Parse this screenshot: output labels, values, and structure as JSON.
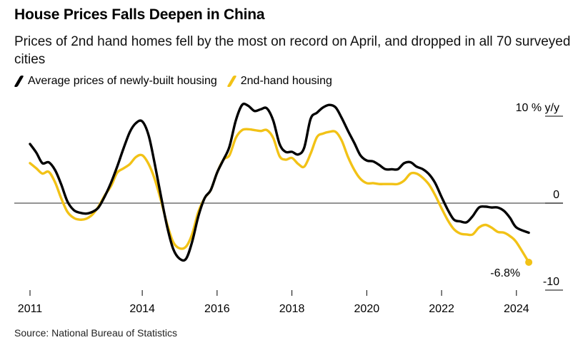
{
  "chart_data": {
    "type": "line",
    "title": "House Prices Falls Deepen in China",
    "subtitle": "Prices of 2nd hand homes fell by the most on record on April, and dropped in all 70 surveyed cities",
    "xlabel": "",
    "ylabel": "10 % y/y",
    "ylim": [
      -10,
      10
    ],
    "xlim": [
      2011.0,
      2024.5
    ],
    "x_ticks": [
      2011,
      2014,
      2016,
      2018,
      2020,
      2022,
      2024
    ],
    "x_tick_labels": [
      "2011",
      "2014",
      "2016",
      "2018",
      "2020",
      "2022",
      "2024"
    ],
    "y_ticks": [
      10,
      0,
      -10
    ],
    "y_tick_labels": [
      "10 % y/y",
      "0",
      "-10"
    ],
    "legend_position": "top-left",
    "source": "Source: National Bureau of Statistics",
    "annotation": {
      "text": "-6.8%",
      "x": 2024.33,
      "y": -6.8
    },
    "series": [
      {
        "name": "Average prices of newly-built housing",
        "color": "#000000",
        "points": [
          [
            2011.0,
            6.8
          ],
          [
            2011.17,
            5.8
          ],
          [
            2011.33,
            4.6
          ],
          [
            2011.5,
            4.7
          ],
          [
            2011.67,
            3.8
          ],
          [
            2011.83,
            2.2
          ],
          [
            2012.0,
            0.2
          ],
          [
            2012.17,
            -0.8
          ],
          [
            2012.33,
            -1.1
          ],
          [
            2012.5,
            -1.2
          ],
          [
            2012.67,
            -1.0
          ],
          [
            2012.83,
            -0.5
          ],
          [
            2013.0,
            0.8
          ],
          [
            2013.17,
            2.4
          ],
          [
            2013.33,
            4.2
          ],
          [
            2013.5,
            6.3
          ],
          [
            2013.67,
            8.2
          ],
          [
            2013.83,
            9.2
          ],
          [
            2014.0,
            9.4
          ],
          [
            2014.17,
            7.8
          ],
          [
            2014.33,
            4.6
          ],
          [
            2014.5,
            0.8
          ],
          [
            2014.67,
            -2.8
          ],
          [
            2014.83,
            -5.3
          ],
          [
            2015.0,
            -6.4
          ],
          [
            2015.17,
            -6.4
          ],
          [
            2015.33,
            -4.5
          ],
          [
            2015.5,
            -1.5
          ],
          [
            2015.67,
            0.6
          ],
          [
            2015.83,
            1.5
          ],
          [
            2016.0,
            3.5
          ],
          [
            2016.17,
            5.0
          ],
          [
            2016.33,
            6.5
          ],
          [
            2016.5,
            9.5
          ],
          [
            2016.67,
            11.3
          ],
          [
            2016.83,
            11.2
          ],
          [
            2017.0,
            10.6
          ],
          [
            2017.17,
            10.8
          ],
          [
            2017.33,
            10.9
          ],
          [
            2017.5,
            9.5
          ],
          [
            2017.67,
            6.8
          ],
          [
            2017.83,
            5.9
          ],
          [
            2018.0,
            5.9
          ],
          [
            2018.17,
            5.6
          ],
          [
            2018.33,
            6.4
          ],
          [
            2018.5,
            9.7
          ],
          [
            2018.67,
            10.4
          ],
          [
            2018.83,
            11.0
          ],
          [
            2019.0,
            11.3
          ],
          [
            2019.17,
            11.0
          ],
          [
            2019.33,
            9.8
          ],
          [
            2019.5,
            8.3
          ],
          [
            2019.67,
            6.9
          ],
          [
            2019.83,
            5.5
          ],
          [
            2020.0,
            4.9
          ],
          [
            2020.17,
            4.8
          ],
          [
            2020.33,
            4.4
          ],
          [
            2020.5,
            3.9
          ],
          [
            2020.67,
            3.9
          ],
          [
            2020.83,
            3.9
          ],
          [
            2021.0,
            4.6
          ],
          [
            2021.17,
            4.7
          ],
          [
            2021.33,
            4.2
          ],
          [
            2021.5,
            3.9
          ],
          [
            2021.67,
            3.3
          ],
          [
            2021.83,
            2.3
          ],
          [
            2022.0,
            0.7
          ],
          [
            2022.17,
            -0.8
          ],
          [
            2022.33,
            -1.9
          ],
          [
            2022.5,
            -2.1
          ],
          [
            2022.67,
            -2.2
          ],
          [
            2022.83,
            -1.5
          ],
          [
            2023.0,
            -0.5
          ],
          [
            2023.17,
            -0.4
          ],
          [
            2023.33,
            -0.5
          ],
          [
            2023.5,
            -0.5
          ],
          [
            2023.67,
            -0.9
          ],
          [
            2023.83,
            -1.7
          ],
          [
            2024.0,
            -2.8
          ],
          [
            2024.33,
            -3.4
          ]
        ]
      },
      {
        "name": "2nd-hand housing",
        "color": "#f2c216",
        "points": [
          [
            2011.0,
            4.6
          ],
          [
            2011.17,
            4.0
          ],
          [
            2011.33,
            3.4
          ],
          [
            2011.5,
            3.6
          ],
          [
            2011.67,
            2.4
          ],
          [
            2011.83,
            0.6
          ],
          [
            2012.0,
            -1.0
          ],
          [
            2012.17,
            -1.7
          ],
          [
            2012.33,
            -1.9
          ],
          [
            2012.5,
            -1.8
          ],
          [
            2012.67,
            -1.3
          ],
          [
            2012.83,
            -0.4
          ],
          [
            2013.0,
            0.9
          ],
          [
            2013.17,
            2.0
          ],
          [
            2013.33,
            3.5
          ],
          [
            2013.5,
            4.0
          ],
          [
            2013.67,
            4.5
          ],
          [
            2013.83,
            5.3
          ],
          [
            2014.0,
            5.5
          ],
          [
            2014.17,
            4.5
          ],
          [
            2014.33,
            2.8
          ],
          [
            2014.5,
            0.3
          ],
          [
            2014.67,
            -2.5
          ],
          [
            2014.83,
            -4.5
          ],
          [
            2015.0,
            -5.2
          ],
          [
            2015.17,
            -5.0
          ],
          [
            2015.33,
            -3.6
          ],
          [
            2015.5,
            -1.0
          ],
          [
            2015.67,
            0.6
          ],
          [
            2015.83,
            1.5
          ],
          [
            2016.0,
            3.5
          ],
          [
            2016.17,
            5.0
          ],
          [
            2016.33,
            5.5
          ],
          [
            2016.5,
            7.5
          ],
          [
            2016.67,
            8.4
          ],
          [
            2016.83,
            8.5
          ],
          [
            2017.0,
            8.4
          ],
          [
            2017.17,
            8.3
          ],
          [
            2017.33,
            8.4
          ],
          [
            2017.5,
            7.5
          ],
          [
            2017.67,
            5.4
          ],
          [
            2017.83,
            5.0
          ],
          [
            2018.0,
            5.2
          ],
          [
            2018.17,
            4.5
          ],
          [
            2018.33,
            4.2
          ],
          [
            2018.5,
            5.7
          ],
          [
            2018.67,
            7.6
          ],
          [
            2018.83,
            8.0
          ],
          [
            2019.0,
            8.2
          ],
          [
            2019.17,
            8.2
          ],
          [
            2019.33,
            7.2
          ],
          [
            2019.5,
            5.3
          ],
          [
            2019.67,
            3.8
          ],
          [
            2019.83,
            2.8
          ],
          [
            2020.0,
            2.3
          ],
          [
            2020.17,
            2.3
          ],
          [
            2020.33,
            2.2
          ],
          [
            2020.5,
            2.2
          ],
          [
            2020.67,
            2.2
          ],
          [
            2020.83,
            2.2
          ],
          [
            2021.0,
            2.6
          ],
          [
            2021.17,
            3.4
          ],
          [
            2021.33,
            3.4
          ],
          [
            2021.5,
            2.9
          ],
          [
            2021.67,
            2.1
          ],
          [
            2021.83,
            0.9
          ],
          [
            2022.0,
            -0.6
          ],
          [
            2022.17,
            -2.0
          ],
          [
            2022.33,
            -3.0
          ],
          [
            2022.5,
            -3.5
          ],
          [
            2022.67,
            -3.6
          ],
          [
            2022.83,
            -3.6
          ],
          [
            2023.0,
            -2.8
          ],
          [
            2023.17,
            -2.5
          ],
          [
            2023.33,
            -2.8
          ],
          [
            2023.5,
            -3.3
          ],
          [
            2023.67,
            -3.4
          ],
          [
            2023.83,
            -3.8
          ],
          [
            2024.0,
            -4.5
          ],
          [
            2024.33,
            -6.8
          ]
        ]
      }
    ]
  }
}
